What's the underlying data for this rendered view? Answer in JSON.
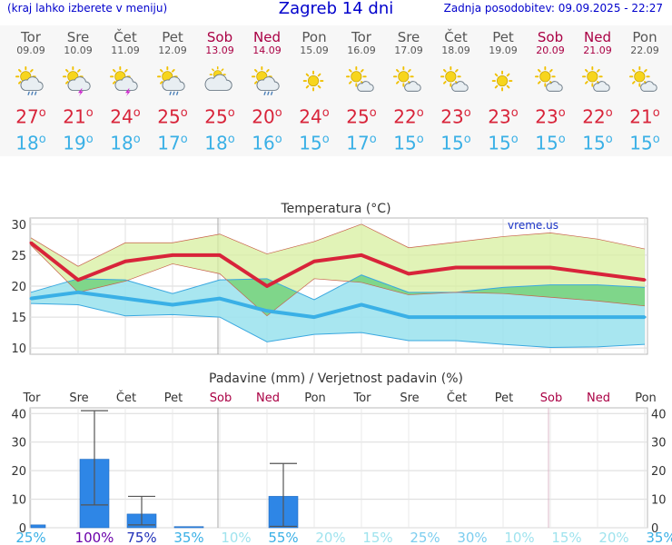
{
  "header": {
    "menu_hint": "(kraj lahko izberete v meniju)",
    "title": "Zagreb 14 dni",
    "updated": "Zadnja posodobitev: 09.09.2025 - 22:27"
  },
  "colors": {
    "max_temp": "#d8243a",
    "min_temp": "#3ab0e6",
    "weekend": "#aa0044",
    "max_band": "#d7ef9f",
    "min_band": "#9fe3ee",
    "overlap_band": "#7fd68a",
    "precip_bar": "#2e86e6"
  },
  "days": [
    {
      "name": "Tor",
      "date": "09.09",
      "weekend": false,
      "icon": "sun-cloud-rain-icon",
      "tmax": "27",
      "tmin": "18"
    },
    {
      "name": "Sre",
      "date": "10.09",
      "weekend": false,
      "icon": "sun-cloud-thunder-icon",
      "tmax": "21",
      "tmin": "19"
    },
    {
      "name": "Čet",
      "date": "11.09",
      "weekend": false,
      "icon": "sun-cloud-thunder-icon",
      "tmax": "24",
      "tmin": "18"
    },
    {
      "name": "Pet",
      "date": "12.09",
      "weekend": false,
      "icon": "sun-cloud-rain-icon",
      "tmax": "25",
      "tmin": "17"
    },
    {
      "name": "Sob",
      "date": "13.09",
      "weekend": true,
      "icon": "sun-behind-cloud-icon",
      "tmax": "25",
      "tmin": "18"
    },
    {
      "name": "Ned",
      "date": "14.09",
      "weekend": true,
      "icon": "sun-cloud-rain-icon",
      "tmax": "20",
      "tmin": "16"
    },
    {
      "name": "Pon",
      "date": "15.09",
      "weekend": false,
      "icon": "sun-icon",
      "tmax": "24",
      "tmin": "15"
    },
    {
      "name": "Tor",
      "date": "16.09",
      "weekend": false,
      "icon": "sun-small-cloud-icon",
      "tmax": "25",
      "tmin": "17"
    },
    {
      "name": "Sre",
      "date": "17.09",
      "weekend": false,
      "icon": "sun-small-cloud-icon",
      "tmax": "22",
      "tmin": "15"
    },
    {
      "name": "Čet",
      "date": "18.09",
      "weekend": false,
      "icon": "sun-small-cloud-icon",
      "tmax": "23",
      "tmin": "15"
    },
    {
      "name": "Pet",
      "date": "19.09",
      "weekend": false,
      "icon": "sun-icon",
      "tmax": "23",
      "tmin": "15"
    },
    {
      "name": "Sob",
      "date": "20.09",
      "weekend": true,
      "icon": "sun-small-cloud-icon",
      "tmax": "23",
      "tmin": "15"
    },
    {
      "name": "Ned",
      "date": "21.09",
      "weekend": true,
      "icon": "sun-small-cloud-icon",
      "tmax": "22",
      "tmin": "15"
    },
    {
      "name": "Pon",
      "date": "22.09",
      "weekend": false,
      "icon": "sun-small-cloud-icon",
      "tmax": "21",
      "tmin": "15"
    }
  ],
  "chart_data": [
    {
      "type": "line",
      "title": "Temperatura (°C)",
      "watermark": "vreme.us",
      "x": [
        "Tor 09.09",
        "Sre 10.09",
        "Čet 11.09",
        "Pet 12.09",
        "Sob 13.09",
        "Ned 14.09",
        "Pon 15.09",
        "Tor 16.09",
        "Sre 17.09",
        "Čet 18.09",
        "Pet 19.09",
        "Sob 20.09",
        "Ned 21.09",
        "Pon 22.09"
      ],
      "ylim": [
        9,
        31
      ],
      "yticks": [
        10,
        15,
        20,
        25,
        30
      ],
      "grid": true,
      "series": [
        {
          "values": [
            27,
            21,
            24,
            25,
            25,
            20,
            24,
            25,
            22,
            23,
            23,
            23,
            22,
            21
          ]
        },
        {
          "values": [
            18,
            19,
            18,
            17,
            18,
            16,
            15,
            17,
            15,
            15,
            15,
            15,
            15,
            15
          ]
        }
      ],
      "max_band": {
        "upper": [
          27.8,
          23.2,
          27.0,
          27.0,
          28.4,
          25.2,
          27.2,
          30.0,
          26.2,
          27.1,
          28.0,
          28.6,
          27.6,
          26.0
        ],
        "lower": [
          26.6,
          19.0,
          20.8,
          23.6,
          22.0,
          15.2,
          21.2,
          20.6,
          18.6,
          19.0,
          18.8,
          18.2,
          17.6,
          16.8
        ]
      },
      "min_band": {
        "upper": [
          19.0,
          21.2,
          21.0,
          18.8,
          21.0,
          21.2,
          17.8,
          21.8,
          19.0,
          19.0,
          19.8,
          20.2,
          20.2,
          19.8
        ],
        "lower": [
          17.2,
          17.0,
          15.2,
          15.4,
          15.0,
          11.0,
          12.2,
          12.5,
          11.2,
          11.2,
          10.6,
          10.1,
          10.2,
          10.6
        ]
      }
    },
    {
      "type": "bar",
      "title": "Padavine (mm) / Verjetnost padavin (%)",
      "categories": [
        "Tor",
        "Sre",
        "Čet",
        "Pet",
        "Sob",
        "Ned",
        "Pon",
        "Tor",
        "Sre",
        "Čet",
        "Pet",
        "Sob",
        "Ned",
        "Pon"
      ],
      "weekend": [
        false,
        false,
        false,
        false,
        true,
        true,
        false,
        false,
        false,
        false,
        false,
        true,
        true,
        false
      ],
      "ylim": [
        0,
        42
      ],
      "yticks": [
        0,
        10,
        20,
        30,
        40
      ],
      "grid": true,
      "values": [
        1.0,
        24.0,
        4.8,
        0.4,
        0,
        11.0,
        0,
        0,
        0,
        0,
        0,
        0,
        0,
        0
      ],
      "error_low": [
        null,
        8.0,
        1.0,
        null,
        null,
        0.5,
        null,
        null,
        null,
        null,
        null,
        null,
        null,
        null
      ],
      "error_high": [
        null,
        41.0,
        11.0,
        null,
        null,
        22.5,
        null,
        null,
        null,
        null,
        null,
        null,
        null,
        null
      ],
      "probabilities": [
        "25%",
        "100%",
        "75%",
        "35%",
        "10%",
        "55%",
        "20%",
        "15%",
        "25%",
        "30%",
        "10%",
        "15%",
        "20%",
        "35%"
      ],
      "probability_colors": [
        "#3ab0e6",
        "#6a00aa",
        "#2030b8",
        "#3ab0e6",
        "#9fe3ee",
        "#3ab0e6",
        "#9fe3ee",
        "#9fe3ee",
        "#7ccdef",
        "#7ccdef",
        "#9fe3ee",
        "#9fe3ee",
        "#9fe3ee",
        "#3ab0e6"
      ]
    }
  ]
}
